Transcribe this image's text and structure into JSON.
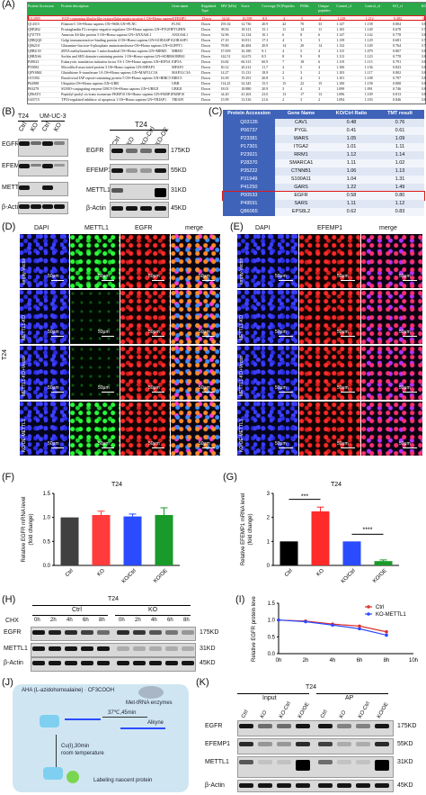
{
  "panels": {
    "A": "(A)",
    "B": "(B)",
    "C": "(C)",
    "D": "(D)",
    "E": "(E)",
    "F": "(F)",
    "G": "(G)",
    "H": "(H)",
    "I": "(I)",
    "J": "(J)",
    "K": "(K)"
  },
  "panelA": {
    "headers": [
      "Protein Accession",
      "Protein description",
      "Gene name",
      "Regulated Type",
      "MW [kDa]",
      "Score",
      "Coverage [%]",
      "Peptides",
      "PSMs",
      "Unique peptides",
      "Control_r1",
      "Control_r2",
      "KO_r1",
      "KO_r2"
    ],
    "highlight_row": [
      "Q12805",
      "EGF-containing fibulin-like extracellular matrix protein 1 OS=Homo sapiens OX=9606 GN=EFEMP1",
      "EFEMP1",
      "Down",
      "54.64",
      "16.598",
      "8.9",
      "4",
      "5",
      "4",
      "1.228",
      "1.212",
      "0.482",
      "0.731"
    ],
    "rows": [
      [
        "Q14315",
        "Filamin-C OS=Homo sapiens OX=9606 GN=FLNC",
        "FLNC",
        "Down",
        "291.02",
        "12.736",
        "20.9",
        "42",
        "70",
        "33",
        "1.147",
        "1.158",
        "0.804",
        "0.817"
      ],
      [
        "Q9P2B2",
        "Prostaglandin F2 receptor negative regulator OS=Homo sapiens GN=PTGFRN",
        "PTGFRN",
        "Down",
        "98.56",
        "18.313",
        "15.1",
        "11",
        "14",
        "11",
        "1.165",
        "1.149",
        "0.678",
        "0.760"
      ],
      [
        "Q7Z7T9",
        "Annexin A6-like protein 5 OS=Homo sapiens GN=ANXA6L1",
        "ANXA6L1",
        "Down",
        "52.96",
        "12.134",
        "10.1",
        "6",
        "8",
        "6",
        "1.147",
        "1.142",
        "0.778",
        "0.846"
      ],
      [
        "Q9BQQ0",
        "Golgi immunoreactive-binding protein 4 OS=Homo sapiens GN=GORASP1",
        "GORASP1",
        "Down",
        "27.10",
        "10.811",
        "17.3",
        "4",
        "3",
        "3",
        "1.139",
        "1.129",
        "0.681",
        "0.788"
      ],
      [
        "Q06210",
        "Glutamine-fructose-6-phosphate aminotransferase OS=Homo sapiens GN=GFPT1",
        "GFPT1",
        "Down",
        "78.80",
        "46.484",
        "20.9",
        "14",
        "20",
        "14",
        "1.132",
        "1.149",
        "0.764",
        "0.788"
      ],
      [
        "Q9BU18",
        "tRNA methyltransferase 1 mitochondrial OS=Homo sapiens GN=MRM3",
        "MRM3",
        "Down",
        "47.659",
        "16.180",
        "9.1",
        "4",
        "5",
        "4",
        "1.115",
        "1.079",
        "0.867",
        "0.854"
      ],
      [
        "Q9BXS6",
        "Sorbin and SH3 domain-containing protein 1 OS=Homo sapiens GN=SORBS1",
        "SORBS1",
        "Down",
        "142.51",
        "14.673",
        "8.5",
        "8",
        "9",
        "8",
        "1.113",
        "1.123",
        "0.778",
        "0.818"
      ],
      [
        "P49023",
        "Eukaryotic translation initiation factor 5A-1 OS=Homo sapiens GN=EIF5A",
        "EIF5A",
        "Down",
        "16.82",
        "66.313",
        "60.9",
        "7",
        "18",
        "6",
        "1.119",
        "1.113",
        "0.791",
        "0.850"
      ],
      [
        "P55082",
        "Microfibril-associated protein 3 OS=Homo sapiens GN=MFAP3",
        "MFAP3",
        "Down",
        "40.12",
        "20.212",
        "11.7",
        "4",
        "5",
        "4",
        "1.106",
        "1.136",
        "0.823",
        "0.844"
      ],
      [
        "Q9Y6M4",
        "Glutathione S-transferase 1A OS=Homo sapiens GN=MAP1LC3A",
        "MAP1LC3A",
        "Down",
        "14.27",
        "13.131",
        "18.9",
        "2",
        "3",
        "2",
        "1.103",
        "1.117",
        "0.802",
        "0.816"
      ],
      [
        "O15392",
        "Baculoviral IAP repeat-containing protein 5 OS=Homo sapiens GN=BIRC5",
        "BIRC5",
        "Down",
        "16.39",
        "19.291",
        "20.8",
        "3",
        "4",
        "3",
        "1.101",
        "1.108",
        "0.707",
        "0.850"
      ],
      [
        "P62988",
        "Ubiquitin OS=Homo sapiens GN=UBB",
        "UBB",
        "Down",
        "114.25",
        "32.345",
        "15.5",
        "15",
        "22",
        "15",
        "1.100",
        "1.158",
        "0.808",
        "0.869"
      ],
      [
        "P63279",
        "SUMO-conjugating enzyme UBC9 OS=Homo sapiens GN=UBE2I",
        "UBE2I",
        "Down",
        "18.01",
        "18.880",
        "20.9",
        "3",
        "4",
        "3",
        "1.099",
        "1.091",
        "0.746",
        "0.851"
      ],
      [
        "Q96AY3",
        "Peptidyl-prolyl cis-trans isomerase FKBP10 OS=Homo sapiens GN=FKBP10",
        "FKBP10",
        "Down",
        "64.20",
        "41.263",
        "23.0",
        "13",
        "17",
        "13",
        "1.096",
        "1.109",
        "0.813",
        "0.867"
      ],
      [
        "O43715",
        "TP53-regulated inhibitor of apoptosis 1 OS=Homo sapiens GN=TRIAP1",
        "TRIAP1",
        "Down",
        "15.99",
        "13.316",
        "21.6",
        "2",
        "3",
        "2",
        "1.094",
        "1.103",
        "0.846",
        "0.848"
      ]
    ]
  },
  "panelB": {
    "left_header": [
      "T24",
      "UM-UC-3"
    ],
    "left_lanes": [
      "Ctrl",
      "KO",
      "Ctrl",
      "KO"
    ],
    "right_header": "T24",
    "right_lanes": [
      "Ctrl",
      "KO",
      "KO-Ctrl",
      "KO-OE"
    ],
    "proteins": [
      "EGFR",
      "EFEMP1",
      "METTL1",
      "β-Actin"
    ],
    "kd": [
      "175KD",
      "55KD",
      "31KD",
      "45KD"
    ]
  },
  "panelC": {
    "headers": [
      "Protein Accession",
      "Gene Name",
      "KO/Ctrl Ratio",
      "TMT result"
    ],
    "rows": [
      [
        "Q03135",
        "CAV1",
        "0.48",
        "0.76"
      ],
      [
        "P06737",
        "PYGL",
        "0.41",
        "0.61"
      ],
      [
        "P23381",
        "WARS",
        "1.05",
        "1.09"
      ],
      [
        "P17301",
        "ITGA2",
        "1.01",
        "1.11"
      ],
      [
        "P23921",
        "RRM1",
        "1.12",
        "1.14"
      ],
      [
        "P28370",
        "SMARCA1",
        "1.11",
        "1.02"
      ],
      [
        "P35222",
        "CTNNB1",
        "1.06",
        "1.13"
      ],
      [
        "P31949",
        "S100A11",
        "1.04",
        "1.31"
      ],
      [
        "P41250",
        "GARS",
        "1.22",
        "1.49"
      ],
      [
        "P00533",
        "EGFR",
        "0.58",
        "0.80"
      ],
      [
        "P49591",
        "SARS",
        "1.11",
        "1.12"
      ],
      [
        "Q86065",
        "EPS8L2",
        "0.62",
        "0.83"
      ]
    ]
  },
  "panelD": {
    "cols": [
      "DAPI",
      "METTL1",
      "EGFR",
      "merge"
    ],
    "rows": [
      "empty-Vector",
      "METTL1-KO",
      "METTL1-KO+Vector",
      "KO/OE-METTL1"
    ],
    "side": "T24",
    "scale": "50μm"
  },
  "panelE": {
    "cols": [
      "DAPI",
      "EFEMP1",
      "merge"
    ],
    "rows": [
      "empty-Vector",
      "METTL1-KO",
      "METTL1-KO+Vector",
      "KO/OE-METTL1"
    ],
    "scale": "50μm"
  },
  "panelF": {
    "title": "T24",
    "ylabel_line1": "Relative  EGFR mRNA level",
    "ylabel_line2": "(fold change)",
    "yticks": [
      "0.0",
      "0.5",
      "1.0",
      "1.5"
    ]
  },
  "panelG": {
    "title": "T24",
    "ylabel_line1": "Relative  EFEMP1 mRNA level",
    "ylabel_line2": "(fold change)",
    "yticks": [
      "0",
      "1",
      "2",
      "3"
    ],
    "sig": [
      "***",
      "****"
    ]
  },
  "panelH": {
    "header": "T24",
    "groups": [
      "Ctrl",
      "KO"
    ],
    "chx": "CHX",
    "times": [
      "0h",
      "2h",
      "4h",
      "6h",
      "8h",
      "0h",
      "2h",
      "4h",
      "6h",
      "8h"
    ],
    "proteins": [
      "EGFR",
      "METTL1",
      "β-Actin"
    ],
    "kd": [
      "175KD",
      "31KD",
      "45KD"
    ]
  },
  "panelI": {
    "ylabel_line1": "Relative  EGFR protein level",
    "yticks": [
      "0.0",
      "0.5",
      "1.0",
      "1.5"
    ],
    "legend": [
      "Ctrl",
      "KO-METTL1"
    ]
  },
  "panelJ": {
    "formula_reagent": "AHA (L-azidohomoalaine)",
    "formula_salt": "· CF3COOH",
    "enzyme": "Met-tRNA enzymes",
    "step1": "37℃,45min",
    "alkyne": "Alkyne",
    "step2a": "Cu(I),30min",
    "step2b": "room temperature",
    "result": "Labeling nascent protein"
  },
  "panelK": {
    "header": "T24",
    "groups": [
      "Input",
      "AP"
    ],
    "lanes": [
      "Ctrl",
      "KO",
      "KO-Ctrl",
      "KO/OE",
      "Ctrl",
      "KO",
      "KO-Ctrl",
      "KO/OE"
    ],
    "proteins": [
      "EGFR",
      "EFEMP1",
      "METTL1",
      "β-Actin"
    ],
    "kd": [
      "175KD",
      "55KD",
      "31KD",
      "45KD"
    ]
  },
  "chart_data": [
    {
      "type": "bar",
      "title": "T24",
      "categories": [
        "Ctrl",
        "KO",
        "KO/Ctrl",
        "KO/OE"
      ],
      "values": [
        1.0,
        1.05,
        1.02,
        1.05
      ],
      "errors": [
        0.0,
        0.08,
        0.05,
        0.15
      ],
      "colors": [
        "#404040",
        "#ff3b3b",
        "#2b4bff",
        "#1a9a2a"
      ],
      "ylim": [
        0,
        1.5
      ],
      "ylabel": "Relative  EGFR mRNA level (fold change)"
    },
    {
      "type": "bar",
      "title": "T24",
      "categories": [
        "Ctrl",
        "KO",
        "KO/Ctrl",
        "KO/OE"
      ],
      "values": [
        1.0,
        2.25,
        1.0,
        0.18
      ],
      "errors": [
        0.0,
        0.18,
        0.0,
        0.05
      ],
      "colors": [
        "#000000",
        "#ff2a2a",
        "#2b4bff",
        "#1a9a2a"
      ],
      "ylim": [
        0,
        3
      ],
      "ylabel": "Relative  EFEMP1 mRNA level (fold change)"
    },
    {
      "type": "line",
      "x": [
        "0h",
        "2h",
        "4h",
        "6h",
        "8h",
        "10h"
      ],
      "series": [
        {
          "name": "Ctrl",
          "values": [
            1.0,
            0.97,
            0.88,
            0.82,
            0.65,
            null
          ],
          "color": "#e03030"
        },
        {
          "name": "KO-METTL1",
          "values": [
            1.0,
            0.95,
            0.85,
            0.74,
            0.55,
            null
          ],
          "color": "#2b4bff"
        }
      ],
      "ylim": [
        0,
        1.5
      ],
      "ylabel": "Relative  EGFR protein level"
    }
  ]
}
